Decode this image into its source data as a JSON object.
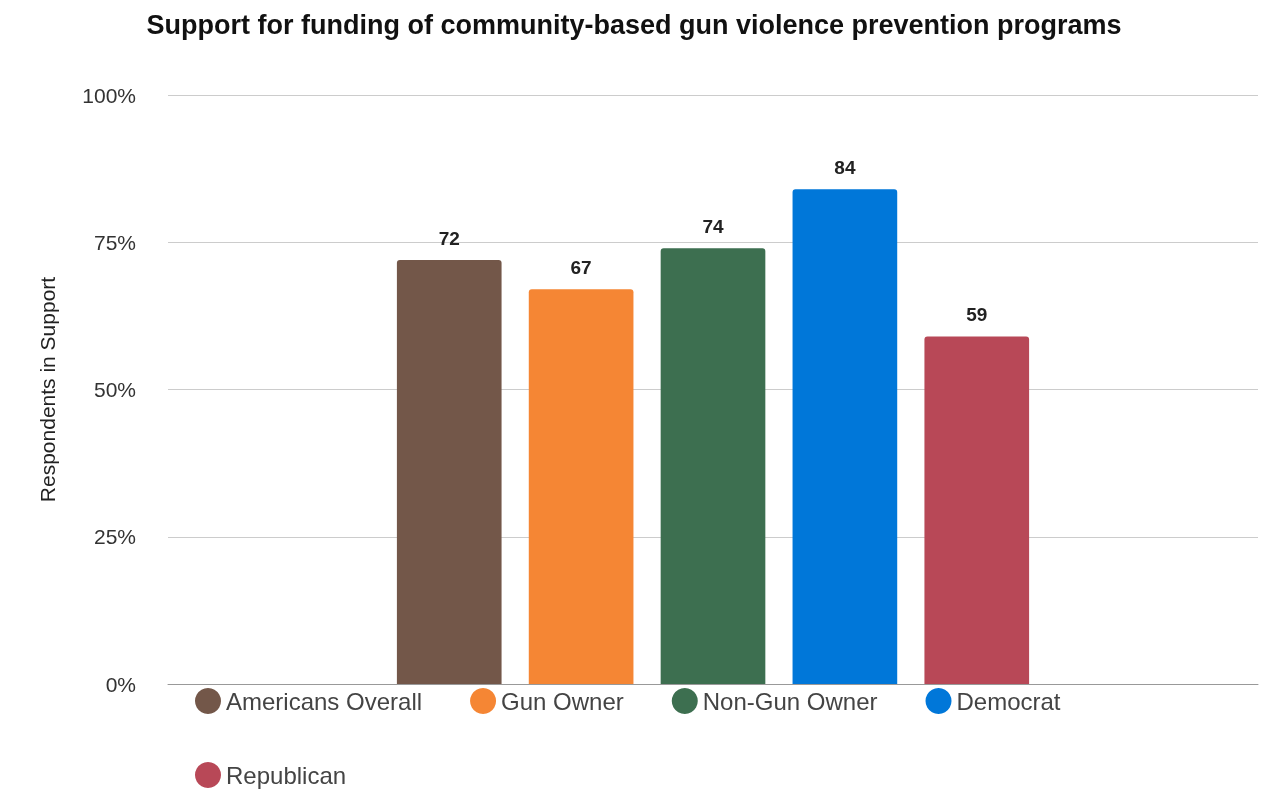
{
  "chart_data": {
    "type": "bar",
    "title": "Support for funding of community-based gun violence prevention programs",
    "ylabel": "Respondents in Support",
    "categories": [
      null
    ],
    "series": [
      {
        "name": "Americans Overall",
        "color": "#735749",
        "values": [
          72
        ]
      },
      {
        "name": "Gun Owner",
        "color": "#f58634",
        "values": [
          67
        ]
      },
      {
        "name": "Non-Gun Owner",
        "color": "#3d6f50",
        "values": [
          74
        ]
      },
      {
        "name": "Democrat",
        "color": "#0077d9",
        "values": [
          84
        ]
      },
      {
        "name": "Republican",
        "color": "#b84857",
        "values": [
          59
        ]
      }
    ],
    "ylim": [
      0,
      100
    ],
    "yticks": [
      {
        "value": 0,
        "label": "0%"
      },
      {
        "value": 25,
        "label": "25%"
      },
      {
        "value": 50,
        "label": "50%"
      },
      {
        "value": 75,
        "label": "75%"
      },
      {
        "value": 100,
        "label": "100%"
      }
    ],
    "grid": "y",
    "legend": "bottom",
    "data_labels": true
  }
}
